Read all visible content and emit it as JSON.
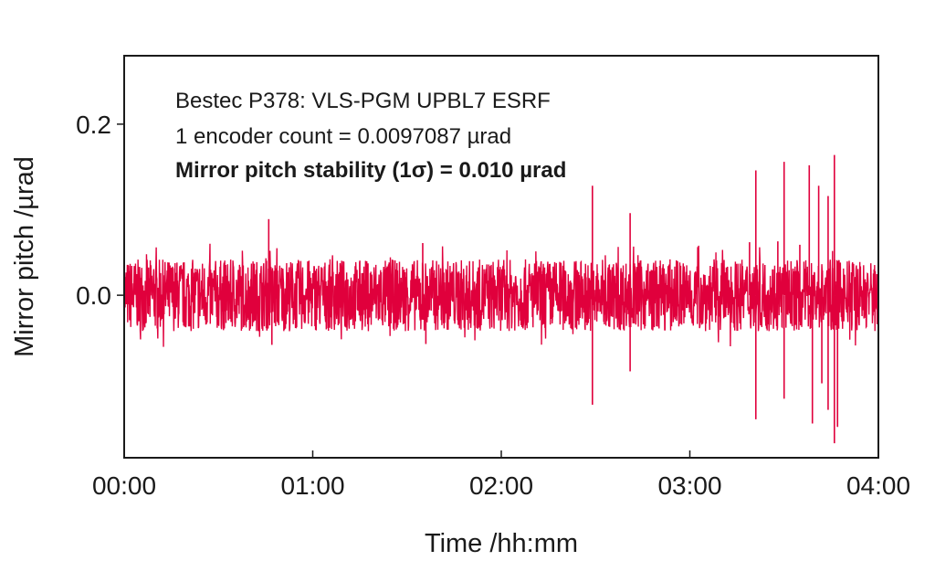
{
  "chart_data": {
    "type": "line",
    "title": "",
    "xlabel": "Time /hh:mm",
    "ylabel": "Mirror pitch /µrad",
    "x_ticks": [
      "00:00",
      "01:00",
      "02:00",
      "03:00",
      "04:00"
    ],
    "y_ticks": [
      "0.0",
      "0.2"
    ],
    "xlim": [
      "00:00",
      "04:00"
    ],
    "ylim": [
      -0.19,
      0.28
    ],
    "grid": false,
    "series_color": "#e0003c",
    "series": [
      {
        "values_summary": {
          "baseline": 0.0,
          "typical_band": [
            -0.04,
            0.04
          ],
          "std_dev": 0.01
        },
        "spikes": [
          {
            "x": "00:46",
            "y": 0.089
          },
          {
            "x": "00:47",
            "y": -0.058
          },
          {
            "x": "01:35",
            "y": 0.061
          },
          {
            "x": "01:36",
            "y": -0.057
          },
          {
            "x": "02:29",
            "y": 0.128
          },
          {
            "x": "02:29",
            "y": -0.128
          },
          {
            "x": "02:41",
            "y": 0.096
          },
          {
            "x": "02:41",
            "y": -0.089
          },
          {
            "x": "03:19",
            "y": 0.062
          },
          {
            "x": "03:21",
            "y": 0.146
          },
          {
            "x": "03:21",
            "y": -0.145
          },
          {
            "x": "03:28",
            "y": 0.063
          },
          {
            "x": "03:30",
            "y": 0.156
          },
          {
            "x": "03:30",
            "y": -0.121
          },
          {
            "x": "03:35",
            "y": 0.059
          },
          {
            "x": "03:38",
            "y": 0.152
          },
          {
            "x": "03:39",
            "y": -0.15
          },
          {
            "x": "03:41",
            "y": 0.128
          },
          {
            "x": "03:42",
            "y": -0.103
          },
          {
            "x": "03:44",
            "y": 0.116
          },
          {
            "x": "03:44",
            "y": -0.134
          },
          {
            "x": "03:46",
            "y": 0.164
          },
          {
            "x": "03:46",
            "y": -0.173
          },
          {
            "x": "03:47",
            "y": -0.154
          }
        ]
      }
    ],
    "annotations": [
      "Bestec P378: VLS-PGM UPBL7 ESRF",
      "1 encoder count = 0.0097087 µrad",
      "Mirror pitch stability (1σ) = 0.010 µrad"
    ]
  }
}
